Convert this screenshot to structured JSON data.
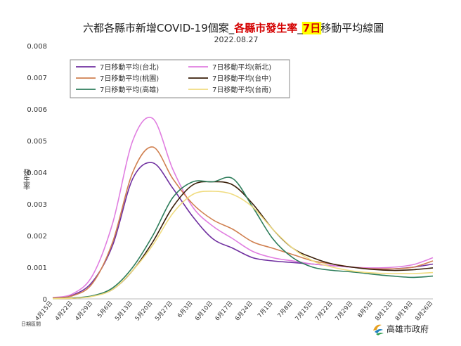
{
  "title": {
    "part1": "六都各縣市新增COVID-19個案_",
    "part2": "各縣市發生率",
    "part3": "_",
    "part4": "7日",
    "part5": "移動平均線圖",
    "highlight_color": "#ffff00"
  },
  "subtitle": "2022.08.27",
  "y_axis_label": "發生率",
  "x_axis_note": "日期區間",
  "logo_text": "高雄市政府",
  "chart_data": {
    "type": "line",
    "x": [
      "4月15日",
      "4月22日",
      "4月29日",
      "5月6日",
      "5月13日",
      "5月20日",
      "5月27日",
      "6月3日",
      "6月10日",
      "6月17日",
      "6月24日",
      "7月1日",
      "7月8日",
      "7月15日",
      "7月22日",
      "7月29日",
      "8月5日",
      "8月12日",
      "8月19日",
      "8月26日"
    ],
    "ylim": [
      0,
      0.008
    ],
    "yticks": [
      "0",
      "0.001",
      "0.002",
      "0.003",
      "0.004",
      "0.005",
      "0.006",
      "0.007",
      "0.008"
    ],
    "legend_position": "top-center",
    "grid": false,
    "series": [
      {
        "name": "7日移動平均(台北)",
        "color": "#7030a0",
        "values": [
          3e-05,
          0.00012,
          0.00055,
          0.0017,
          0.0038,
          0.0043,
          0.0035,
          0.0026,
          0.0019,
          0.0016,
          0.0013,
          0.0012,
          0.00115,
          0.0011,
          0.00105,
          0.001,
          0.00095,
          0.00095,
          0.001,
          0.0011
        ]
      },
      {
        "name": "7日移動平均(新北)",
        "color": "#e07ee0",
        "values": [
          4e-05,
          0.00016,
          0.00075,
          0.0024,
          0.005,
          0.0057,
          0.0041,
          0.0029,
          0.0023,
          0.0019,
          0.0015,
          0.0013,
          0.0012,
          0.0011,
          0.00105,
          0.001,
          0.00098,
          0.001,
          0.00108,
          0.0013
        ]
      },
      {
        "name": "7日移動平均(桃園)",
        "color": "#d08050",
        "values": [
          3e-05,
          0.0001,
          0.0005,
          0.0018,
          0.004,
          0.0048,
          0.0038,
          0.003,
          0.0025,
          0.0022,
          0.0018,
          0.0016,
          0.0014,
          0.0012,
          0.0011,
          0.001,
          0.00095,
          0.00095,
          0.001,
          0.0012
        ]
      },
      {
        "name": "7日移動平均(台中)",
        "color": "#3a1f0a",
        "values": [
          1e-05,
          2e-05,
          9e-05,
          0.0003,
          0.0009,
          0.0018,
          0.0029,
          0.0036,
          0.0037,
          0.0036,
          0.003,
          0.0022,
          0.0016,
          0.0013,
          0.0011,
          0.001,
          0.00093,
          0.0009,
          0.00092,
          0.00098
        ]
      },
      {
        "name": "7日移動平均(高雄)",
        "color": "#2e7d5b",
        "values": [
          1e-05,
          3e-05,
          0.0001,
          0.00035,
          0.001,
          0.002,
          0.0032,
          0.0037,
          0.0037,
          0.0038,
          0.0029,
          0.0019,
          0.0013,
          0.001,
          0.0009,
          0.00085,
          0.00078,
          0.00072,
          0.00068,
          0.00072
        ]
      },
      {
        "name": "7日移動平均(台南)",
        "color": "#f0dc80",
        "values": [
          1e-05,
          2e-05,
          8e-05,
          0.0003,
          0.0009,
          0.0017,
          0.0027,
          0.0033,
          0.0034,
          0.0033,
          0.0029,
          0.0022,
          0.0016,
          0.0012,
          0.001,
          0.00088,
          0.00082,
          0.0008,
          0.0008,
          0.00083
        ]
      }
    ]
  }
}
